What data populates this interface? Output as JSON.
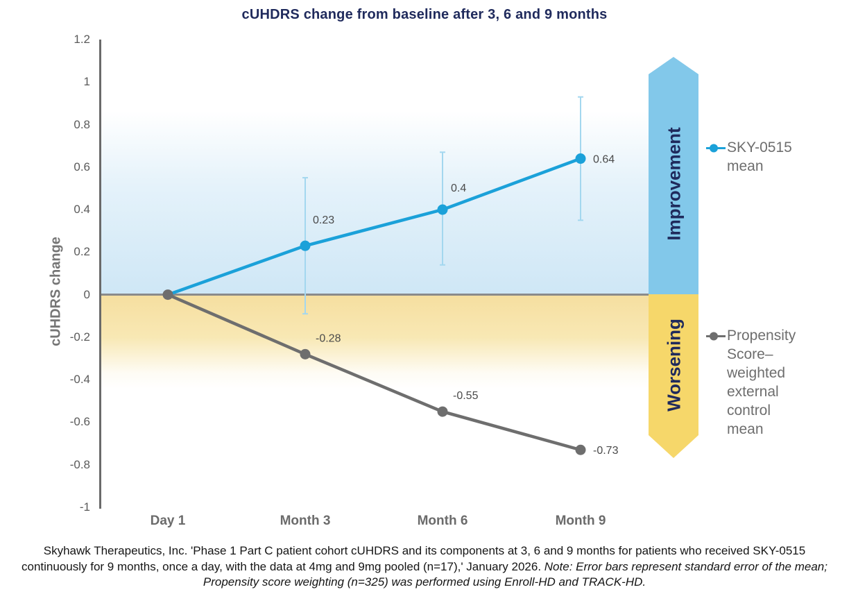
{
  "title": "cUHDRS change from baseline after 3, 6 and 9 months",
  "chart_data": {
    "type": "line",
    "title": "cUHDRS change from baseline after 3, 6 and 9 months",
    "xlabel": "",
    "ylabel": "cUHDRS change",
    "ylim": [
      -1,
      1.2
    ],
    "yticks": [
      "1.2",
      "1",
      "0.8",
      "0.6",
      "0.4",
      "0.2",
      "0",
      "-0.2",
      "-0.4",
      "-0.6",
      "-0.8",
      "-1"
    ],
    "categories": [
      "Day 1",
      "Month 3",
      "Month 6",
      "Month 9"
    ],
    "grid": "off",
    "legend_position": "right",
    "series": [
      {
        "name": "SKY-0515 mean",
        "color": "#1ba1d9",
        "error_color": "#a3d7ef",
        "values": [
          0,
          0.23,
          0.4,
          0.64
        ],
        "point_labels": [
          "",
          "0.23",
          "0.4",
          "0.64"
        ],
        "error_low": [
          null,
          -0.09,
          0.14,
          0.35
        ],
        "error_high": [
          null,
          0.55,
          0.67,
          0.93
        ]
      },
      {
        "name": "Propensity Score–weighted external control mean",
        "color": "#6e6e6e",
        "values": [
          0,
          -0.28,
          -0.55,
          -0.73
        ],
        "point_labels": [
          "",
          "-0.28",
          "-0.55",
          "-0.73"
        ],
        "error_low": null,
        "error_high": null
      }
    ],
    "background_regions": {
      "positive_fill": "#cfe7f6",
      "negative_fill": "#f6dfa0"
    }
  },
  "annotations": {
    "improvement_label": "Improvement",
    "worsening_label": "Worsening",
    "improvement_color": "#82c8ea",
    "worsening_color": "#f6d76a",
    "label_color": "#1f2a5c"
  },
  "legend": {
    "items": [
      {
        "label": "SKY-0515 mean",
        "color": "#1ba1d9"
      },
      {
        "label": "Propensity Score–weighted external control mean",
        "color": "#6e6e6e"
      }
    ]
  },
  "footer": {
    "citation": "Skyhawk Therapeutics, Inc. 'Phase 1 Part C patient cohort cUHDRS and its components at 3, 6 and 9 months for patients who received SKY-0515 continuously for 9 months, once a day, with the data at 4mg and 9mg pooled (n=17),' January 2026. ",
    "note": "Note: Error bars represent standard error of the mean; Propensity score weighting (n=325) was performed using Enroll-HD and TRACK-HD."
  }
}
